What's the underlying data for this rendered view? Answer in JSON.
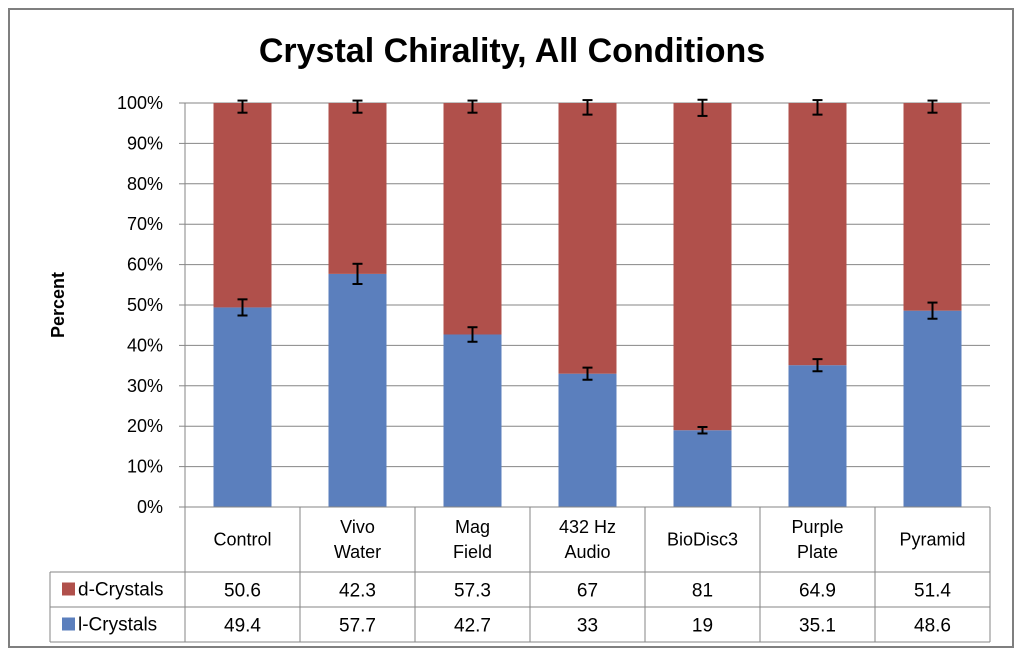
{
  "chart_data": {
    "type": "bar",
    "stacked": true,
    "percent_stacked": true,
    "title": "Crystal Chirality, All Conditions",
    "xlabel": "",
    "ylabel": "Percent",
    "ylim": [
      0,
      100
    ],
    "yticks": [
      "0%",
      "10%",
      "20%",
      "30%",
      "40%",
      "50%",
      "60%",
      "70%",
      "80%",
      "90%",
      "100%"
    ],
    "grid": true,
    "data_table": true,
    "categories": [
      [
        "Control"
      ],
      [
        "Vivo",
        "Water"
      ],
      [
        "Mag",
        "Field"
      ],
      [
        "432 Hz",
        "Audio"
      ],
      [
        "BioDisc3"
      ],
      [
        "Purple",
        "Plate"
      ],
      [
        "Pyramid"
      ]
    ],
    "series": [
      {
        "name": "d-Crystals",
        "color": "#b0504b",
        "values": [
          50.6,
          42.3,
          57.3,
          67,
          81,
          64.9,
          51.4
        ],
        "labels": [
          "50.6",
          "42.3",
          "57.3",
          "67",
          "81",
          "64.9",
          "51.4"
        ]
      },
      {
        "name": "l-Crystals",
        "color": "#5b7fbd",
        "values": [
          49.4,
          57.7,
          42.7,
          33,
          19,
          35.1,
          48.6
        ],
        "labels": [
          "49.4",
          "57.7",
          "42.7",
          "33",
          "19",
          "35.1",
          "48.6"
        ]
      }
    ],
    "error_bars": {
      "top": [
        1.5,
        1.5,
        1.5,
        1.8,
        2.0,
        1.8,
        1.5
      ],
      "middle": [
        2.0,
        2.5,
        1.8,
        1.5,
        0.8,
        1.5,
        2.0
      ]
    }
  }
}
